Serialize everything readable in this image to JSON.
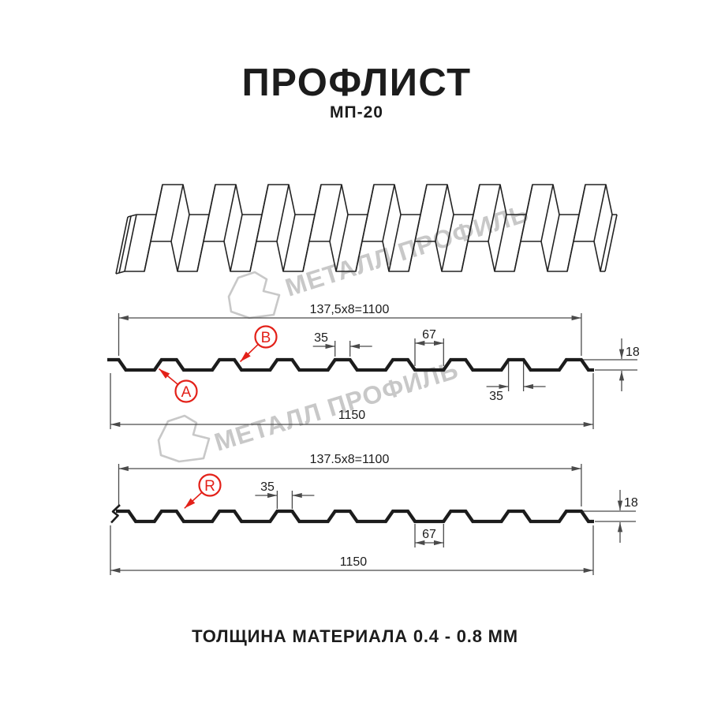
{
  "title": "ПРОФЛИСТ",
  "subtitle": "МП-20",
  "footer": "ТОЛЩИНА МАТЕРИАЛА 0.4 - 0.8 ММ",
  "watermark": {
    "brand": "МЕТАЛЛ ПРОФИЛЬ"
  },
  "colors": {
    "line": "#1c1c1c",
    "dimension_line": "#4a4a4a",
    "accent_red": "#e32119",
    "watermark_gray": "#c8c8c8",
    "background": "#ffffff"
  },
  "section1": {
    "pitch_formula": "137,5x8=1100",
    "crest_width_top": "35",
    "valley_width": "67",
    "profile_height": "18",
    "crest_width_bottom": "35",
    "overall_width": "1150",
    "label_a": "A",
    "label_b": "B"
  },
  "section2": {
    "pitch_formula": "137.5x8=1100",
    "crest_width_top": "35",
    "valley_width": "67",
    "profile_height": "18",
    "overall_width": "1150",
    "label_r": "R"
  }
}
